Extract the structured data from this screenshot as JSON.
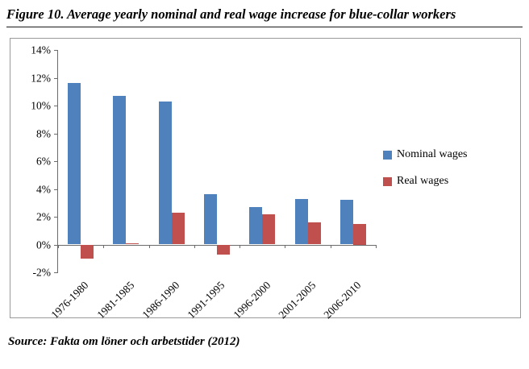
{
  "figure": {
    "title": "Figure 10. Average yearly nominal and real wage increase for blue-collar workers",
    "source": "Source: Fakta om löner och arbetstider (2012)"
  },
  "chart_data": {
    "type": "bar",
    "title": "",
    "xlabel": "",
    "ylabel": "",
    "categories": [
      "1976-1980",
      "1981-1985",
      "1986-1990",
      "1991-1995",
      "1996-2000",
      "2001-2005",
      "2006-2010"
    ],
    "series": [
      {
        "name": "Nominal wages",
        "color": "#4f81bd",
        "values": [
          11.6,
          10.7,
          10.3,
          3.6,
          2.7,
          3.3,
          3.2
        ]
      },
      {
        "name": "Real wages",
        "color": "#c0504d",
        "values": [
          -1.0,
          0.1,
          2.3,
          -0.7,
          2.2,
          1.6,
          1.5
        ]
      }
    ],
    "ylim": [
      -2,
      14
    ],
    "ytick_step": 2,
    "ytick_suffix": "%",
    "grid": false,
    "legend_position": "right"
  }
}
